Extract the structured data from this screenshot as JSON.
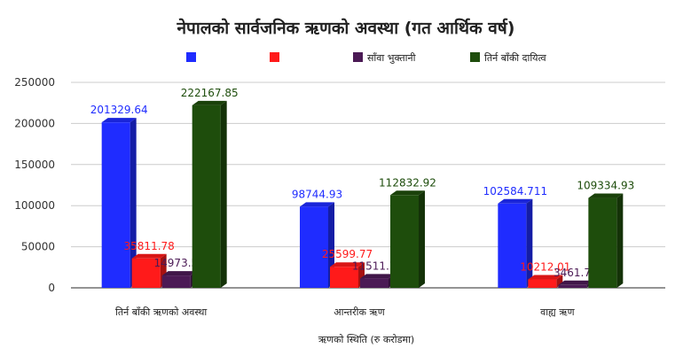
{
  "chart_data": {
    "type": "bar",
    "title": "नेपालको सार्वजनिक ऋणको अवस्था (गत आर्थिक वर्ष)",
    "xlabel": "ऋणको स्थिति (रु करोडमा)",
    "ylabel": "",
    "ylim": [
      0,
      250000
    ],
    "yticks": [
      0,
      50000,
      100000,
      150000,
      200000,
      250000
    ],
    "grid": true,
    "legend_position": "top",
    "categories": [
      "तिर्न बाँकी ऋणको अवस्था",
      "आन्तरीक ऋण",
      "वाह्य ऋण"
    ],
    "series": [
      {
        "name": "",
        "color": "#1f2cff",
        "values": [
          201329.64,
          98744.93,
          102584.711
        ],
        "labels": [
          "201329.64",
          "98744.93",
          "102584.711"
        ]
      },
      {
        "name": "",
        "color": "#ff1a1a",
        "values": [
          35811.78,
          25599.77,
          10212.01
        ],
        "labels": [
          "35811.78",
          "25599.77",
          "10212.01"
        ]
      },
      {
        "name": "साँवा भुक्तानी",
        "color": "#4b1a55",
        "values": [
          14973.57,
          11511.78,
          3461.79
        ],
        "labels": [
          "14973.57",
          "11511.78",
          "3461.79"
        ]
      },
      {
        "name": "तिर्न बाँकी दायित्व",
        "color": "#1e4d0c",
        "values": [
          222167.85,
          112832.92,
          109334.93
        ],
        "labels": [
          "222167.85",
          "112832.92",
          "109334.93"
        ]
      }
    ]
  }
}
